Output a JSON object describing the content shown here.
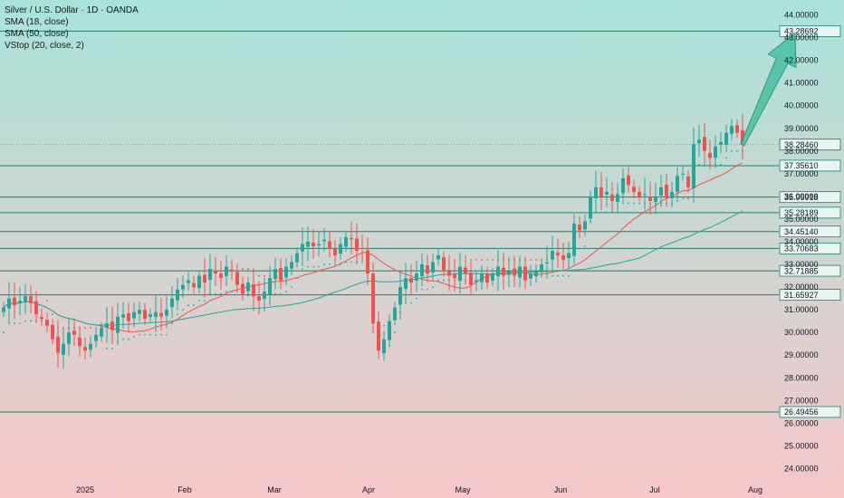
{
  "legend": {
    "title": "Silver / U.S. Dollar · 1D · OANDA",
    "sma18": "SMA (18, close)",
    "sma50": "SMA (50, close)",
    "vstop": "VStop (20, close, 2)"
  },
  "colors": {
    "bg_top": "#a9e3d8",
    "bg_bottom": "#f6c7ca",
    "up": "#26a69a",
    "down": "#ef5350",
    "sma18": "#ef5350",
    "sma50": "#26a69a",
    "level_line": "#1e7f6f",
    "arrow_fill": "#4fc2a3",
    "arrow_stroke": "#238f78"
  },
  "chart_data": {
    "type": "candlestick",
    "symbol": "Silver / U.S. Dollar",
    "timeframe": "1D",
    "source": "OANDA",
    "y_range": [
      23.5,
      44.5
    ],
    "y_ticks": [
      "44.00000",
      "43.00000",
      "42.00000",
      "41.00000",
      "40.00000",
      "39.00000",
      "38.00000",
      "37.00000",
      "36.00000",
      "35.00000",
      "34.00000",
      "33.00000",
      "32.00000",
      "31.00000",
      "30.00000",
      "29.00000",
      "28.00000",
      "27.00000",
      "26.00000",
      "25.00000",
      "24.00000"
    ],
    "x_labels": [
      "2025",
      "Feb",
      "Mar",
      "Apr",
      "May",
      "Jun",
      "Jul",
      "Aug"
    ],
    "levels": [
      "43.28692",
      "37.35610",
      "35.96918",
      "35.28189",
      "34.45140",
      "33.70683",
      "32.71885",
      "31.65927",
      "26.49456"
    ],
    "last_price": "38.28460",
    "closes": [
      31.1,
      31.5,
      31.2,
      31.4,
      31.6,
      31.3,
      30.8,
      30.6,
      30.3,
      29.7,
      29.1,
      29.5,
      30.0,
      29.9,
      29.4,
      29.2,
      29.5,
      29.9,
      30.2,
      30.4,
      30.1,
      30.7,
      30.8,
      30.5,
      30.9,
      31.0,
      30.6,
      30.8,
      30.9,
      30.7,
      31.0,
      31.5,
      31.9,
      32.1,
      32.3,
      32.0,
      32.5,
      32.2,
      32.8,
      32.6,
      32.4,
      32.9,
      32.7,
      32.1,
      31.7,
      32.2,
      31.6,
      31.4,
      31.8,
      32.4,
      32.8,
      32.3,
      32.9,
      33.1,
      33.5,
      33.9,
      34.0,
      33.8,
      33.9,
      34.1,
      33.7,
      33.4,
      33.9,
      34.2,
      34.1,
      33.6,
      33.7,
      32.6,
      30.4,
      29.2,
      29.7,
      30.5,
      31.1,
      32.0,
      32.4,
      32.2,
      32.6,
      33.0,
      32.6,
      33.1,
      33.4,
      32.7,
      32.5,
      32.4,
      32.9,
      32.6,
      32.1,
      32.3,
      32.6,
      32.2,
      32.6,
      32.9,
      32.5,
      32.7,
      32.5,
      32.9,
      32.3,
      32.6,
      32.7,
      33.0,
      33.1,
      33.6,
      33.4,
      33.2,
      33.5,
      34.8,
      34.5,
      34.9,
      36.0,
      36.4,
      36.0,
      36.2,
      35.8,
      36.1,
      36.8,
      36.5,
      36.2,
      36.0,
      36.1,
      35.8,
      36.0,
      36.4,
      36.0,
      36.2,
      36.9,
      37.0,
      36.4,
      38.3,
      38.5,
      38.0,
      37.7,
      38.2,
      38.4,
      38.8,
      39.1,
      38.8,
      38.28
    ]
  }
}
